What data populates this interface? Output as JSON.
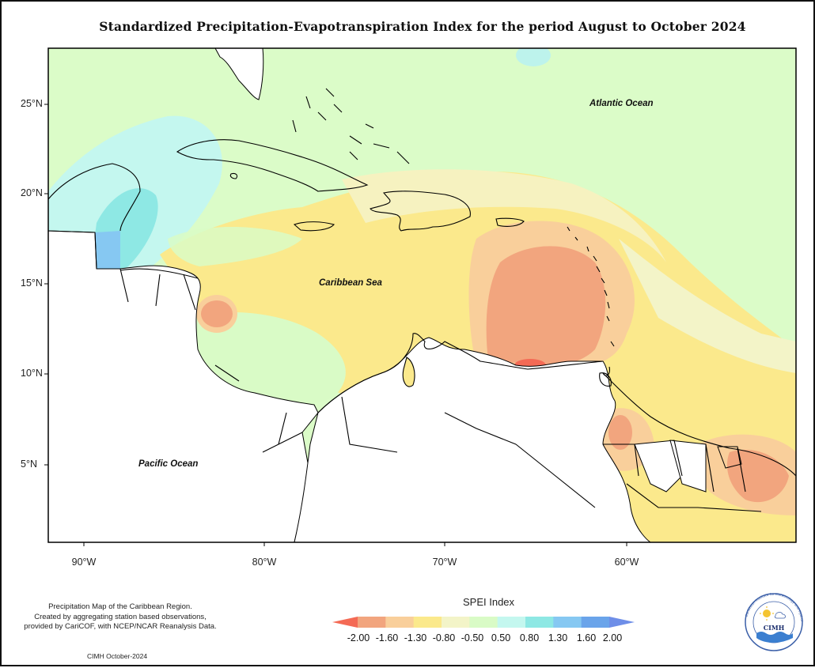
{
  "title": "Standardized Precipitation-Evapotranspiration Index for the period August to October 2024",
  "latitude_labels": [
    "25°N",
    "20°N",
    "15°N",
    "10°N",
    "5°N"
  ],
  "longitude_labels": [
    "90°W",
    "80°W",
    "70°W",
    "60°W"
  ],
  "ocean_labels": {
    "atlantic": "Atlantic Ocean",
    "caribbean": "Caribbean Sea",
    "pacific": "Pacific Ocean"
  },
  "footnote_lines": [
    "Precipitation Map of the Caribbean Region.",
    "Created by aggregating station based observations,",
    "provided by CariCOF, with NCEP/NCAR Reanalysis Data."
  ],
  "credit": "CIMH October-2024",
  "legend": {
    "title": "SPEI Index",
    "tick_labels": [
      "-2.00",
      "-1.60",
      "-1.30",
      "-0.80",
      "-0.50",
      "0.50",
      "0.80",
      "1.30",
      "1.60",
      "2.00"
    ],
    "colors": [
      "#f46a55",
      "#f2a57e",
      "#f9cf9b",
      "#fbe98c",
      "#f3f4c8",
      "#d9fbc6",
      "#c4f7ef",
      "#8ee8e4",
      "#86c8f2",
      "#6aa4ea",
      "#6e8ee8"
    ]
  },
  "logo": {
    "text": "CIMH",
    "ring_text": "Caribbean Institute for Meteorology and Hydrology"
  }
}
